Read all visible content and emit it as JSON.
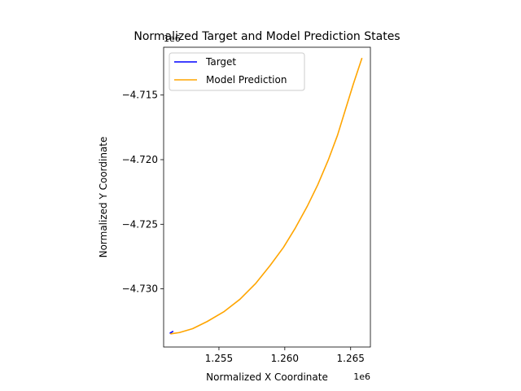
{
  "chart_data": {
    "type": "line",
    "title": "Normalized Target and Model Prediction States",
    "xlabel": "Normalized X Coordinate",
    "ylabel": "Normalized Y Coordinate",
    "x_offset_label": "1e6",
    "y_offset_label": "1e6",
    "xlim": [
      1250800,
      1266500
    ],
    "ylim": [
      -4734500,
      -4711300
    ],
    "x_ticks": [
      1255000,
      1260000,
      1265000
    ],
    "x_tick_labels": [
      "1.255",
      "1.260",
      "1.265"
    ],
    "y_ticks": [
      -4715000,
      -4720000,
      -4725000,
      -4730000
    ],
    "y_tick_labels": [
      "−4.715",
      "−4.720",
      "−4.725",
      "−4.730"
    ],
    "grid": false,
    "legend_position": "upper left",
    "series": [
      {
        "name": "Target",
        "color": "#0000ff",
        "x": [
          1251300,
          1251500
        ],
        "y": [
          -4733420,
          -4733300
        ]
      },
      {
        "name": "Model Prediction",
        "color": "#ffa500",
        "x": [
          1251350,
          1252000,
          1253000,
          1254100,
          1255400,
          1256600,
          1257800,
          1258900,
          1259900,
          1260800,
          1261700,
          1262500,
          1263300,
          1264000,
          1264600,
          1265200,
          1265850
        ],
        "y": [
          -4733480,
          -4733380,
          -4733080,
          -4732530,
          -4731750,
          -4730800,
          -4729570,
          -4728170,
          -4726790,
          -4725290,
          -4723620,
          -4721950,
          -4720030,
          -4718120,
          -4716140,
          -4714160,
          -4712170
        ]
      }
    ]
  }
}
